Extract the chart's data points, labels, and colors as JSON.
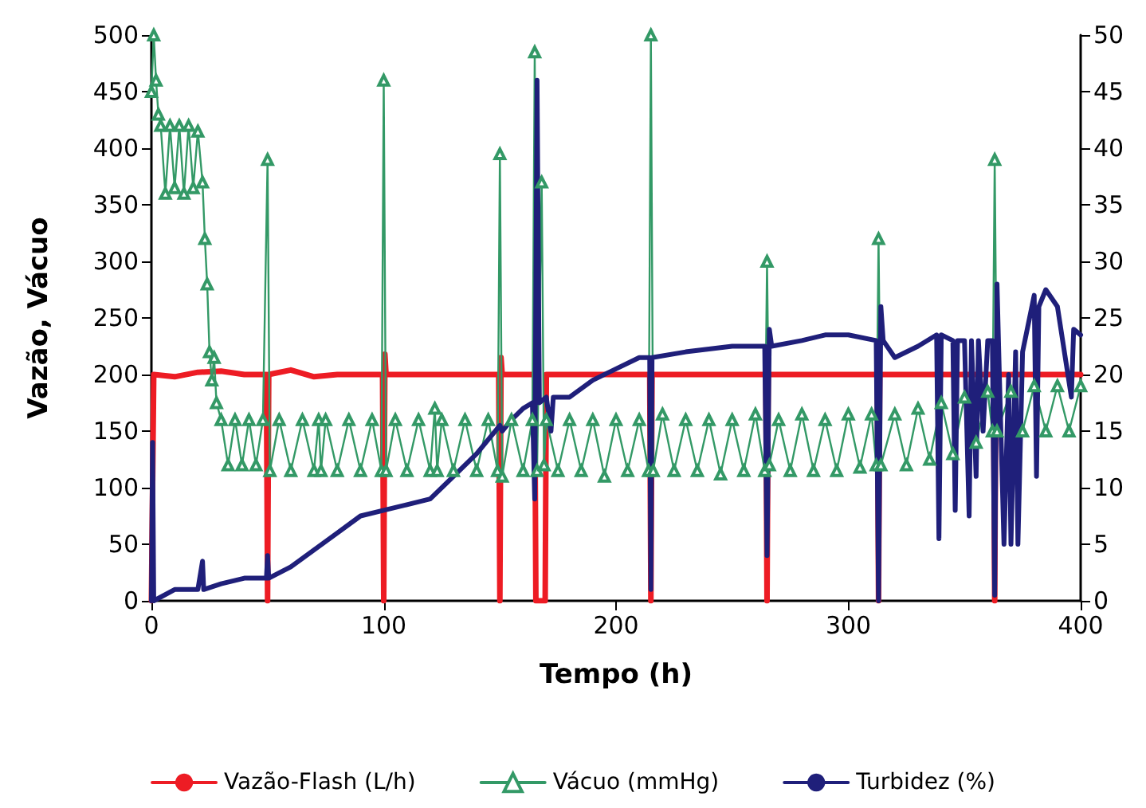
{
  "chart_data": {
    "type": "line",
    "xlabel": "Tempo (h)",
    "ylabel": "Vazão, Vácuo",
    "xlim": [
      0,
      400
    ],
    "xticks": [
      0,
      100,
      200,
      300,
      400
    ],
    "ylim": [
      0,
      500
    ],
    "yticks": [
      0,
      50,
      100,
      150,
      200,
      250,
      300,
      350,
      400,
      450,
      500
    ],
    "y2lim": [
      0,
      50
    ],
    "y2ticks": [
      0,
      5,
      10,
      15,
      20,
      25,
      30,
      35,
      40,
      45,
      50
    ],
    "grid": false,
    "legend": "bottom",
    "series": [
      {
        "name": "Vazão-Flash (L/h)",
        "color": "#ed1c24",
        "marker": "none",
        "x": [
          0,
          1,
          10,
          20,
          30,
          40,
          49.5,
          50,
          50.5,
          60,
          70,
          80,
          90,
          99.5,
          100,
          100.5,
          101,
          120,
          140,
          149.5,
          150,
          150.5,
          151,
          160,
          165,
          165.5,
          169.5,
          170,
          190,
          214.5,
          215,
          215.5,
          240,
          264.5,
          265,
          265.5,
          290,
          312.5,
          313,
          313.5,
          340,
          362.5,
          363,
          363.5,
          380,
          400
        ],
        "values": [
          0,
          200,
          198,
          202,
          203,
          200,
          200,
          0,
          200,
          204,
          198,
          200,
          200,
          200,
          0,
          218,
          200,
          200,
          200,
          200,
          0,
          215,
          200,
          200,
          200,
          0,
          0,
          200,
          200,
          200,
          0,
          200,
          200,
          200,
          0,
          200,
          200,
          200,
          0,
          200,
          200,
          200,
          0,
          200,
          200,
          200
        ]
      },
      {
        "name": "Vácuo (mmHg)",
        "color": "#339966",
        "marker": "triangle",
        "x": [
          0,
          1,
          2,
          3,
          4,
          6,
          8,
          10,
          12,
          14,
          16,
          18,
          20,
          22,
          23,
          24,
          25,
          26,
          27,
          28,
          30,
          33,
          36,
          39,
          42,
          45,
          48,
          50,
          51,
          55,
          60,
          65,
          70,
          72,
          73,
          75,
          80,
          85,
          90,
          95,
          99,
          100,
          101,
          105,
          110,
          115,
          120,
          122,
          123,
          125,
          130,
          135,
          140,
          145,
          149,
          150,
          151,
          155,
          160,
          164,
          165,
          166,
          168,
          169,
          170,
          175,
          180,
          185,
          190,
          195,
          200,
          205,
          210,
          214,
          215,
          216,
          220,
          225,
          230,
          235,
          240,
          245,
          250,
          255,
          260,
          264,
          265,
          266,
          270,
          275,
          280,
          285,
          290,
          295,
          300,
          305,
          310,
          312,
          313,
          314,
          320,
          325,
          330,
          335,
          340,
          345,
          350,
          355,
          360,
          362,
          363,
          364,
          370,
          375,
          380,
          385,
          390,
          395,
          400
        ],
        "values": [
          450,
          500,
          460,
          430,
          420,
          360,
          420,
          365,
          420,
          360,
          420,
          365,
          415,
          370,
          320,
          280,
          220,
          195,
          215,
          175,
          160,
          120,
          160,
          120,
          160,
          120,
          160,
          390,
          115,
          160,
          115,
          160,
          115,
          160,
          115,
          160,
          115,
          160,
          115,
          160,
          115,
          460,
          115,
          160,
          115,
          160,
          115,
          170,
          115,
          160,
          115,
          160,
          115,
          160,
          115,
          395,
          110,
          160,
          115,
          160,
          485,
          115,
          370,
          120,
          160,
          115,
          160,
          115,
          160,
          110,
          160,
          115,
          160,
          115,
          500,
          115,
          165,
          115,
          160,
          115,
          160,
          112,
          160,
          115,
          165,
          115,
          300,
          120,
          160,
          115,
          165,
          115,
          160,
          115,
          165,
          118,
          165,
          120,
          320,
          120,
          165,
          120,
          170,
          125,
          175,
          130,
          180,
          140,
          185,
          150,
          390,
          150,
          185,
          150,
          190,
          150,
          190,
          150,
          190
        ]
      },
      {
        "name": "Turbidez (%)",
        "color": "#1f1f7a",
        "marker": "none",
        "axis": "y2",
        "x": [
          0,
          0.5,
          1,
          10,
          20,
          22,
          22.5,
          30,
          40,
          49.5,
          50,
          50.5,
          60,
          70,
          80,
          90,
          100,
          110,
          120,
          130,
          140,
          150,
          151,
          155,
          160,
          164,
          165,
          166,
          167,
          170,
          172,
          173,
          180,
          190,
          200,
          210,
          214.5,
          215,
          215.5,
          230,
          250,
          264,
          265,
          266,
          267,
          280,
          290,
          300,
          312,
          313,
          314,
          315,
          320,
          330,
          338,
          339,
          340,
          345,
          346,
          347,
          350,
          352,
          353,
          355,
          356,
          358,
          360,
          362,
          363,
          364,
          365,
          367,
          369,
          370,
          372,
          373,
          375,
          380,
          381,
          382,
          385,
          390,
          396,
          397,
          400
        ],
        "values": [
          0,
          14,
          0,
          1,
          1,
          3.5,
          1,
          1.5,
          2,
          2,
          4,
          2,
          3,
          4.5,
          6,
          7.5,
          8,
          8.5,
          9,
          11,
          13,
          15.5,
          15,
          16,
          17,
          17.5,
          9,
          46,
          17.5,
          18,
          15,
          18,
          18,
          19.5,
          20.5,
          21.5,
          21.5,
          1,
          21.5,
          22,
          22.5,
          22.5,
          4,
          24,
          22.5,
          23,
          23.5,
          23.5,
          23,
          0,
          26,
          23,
          21.5,
          22.5,
          23.5,
          5.5,
          23.5,
          23,
          8,
          23,
          23,
          7.5,
          23,
          11,
          23,
          15,
          23,
          23,
          0.5,
          28,
          20,
          5,
          20,
          5,
          22,
          5,
          22,
          27,
          11,
          26,
          27.5,
          26,
          18,
          24,
          23.5
        ]
      }
    ]
  }
}
